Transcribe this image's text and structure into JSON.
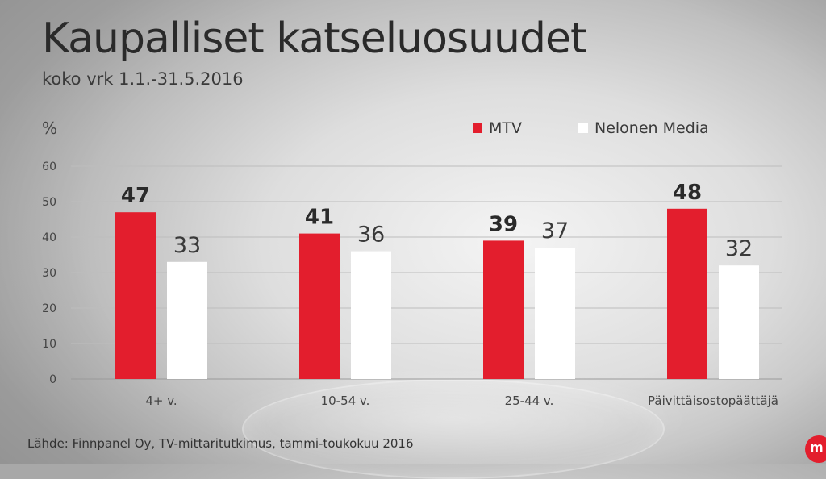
{
  "chart_data": {
    "type": "bar",
    "title": "Kaupalliset katseluosuudet",
    "subtitle": "koko vrk 1.1.-31.5.2016",
    "ylabel": "%",
    "xlabel": "",
    "ylim": [
      0,
      60
    ],
    "yticks": [
      0,
      10,
      20,
      30,
      40,
      50,
      60
    ],
    "grid": true,
    "legend_position": "top-right",
    "categories": [
      "4+ v.",
      "10-54 v.",
      "25-44 v.",
      "Päivittäisostopäättäjä"
    ],
    "series": [
      {
        "name": "MTV",
        "color": "#e31e2d",
        "values": [
          47,
          41,
          39,
          48
        ]
      },
      {
        "name": "Nelonen Media",
        "color": "#ffffff",
        "values": [
          33,
          36,
          37,
          32
        ]
      }
    ]
  },
  "footer": {
    "source": "Lähde: Finnpanel Oy, TV-mittaritutkimus, tammi-toukokuu 2016",
    "logo_text": "m"
  }
}
